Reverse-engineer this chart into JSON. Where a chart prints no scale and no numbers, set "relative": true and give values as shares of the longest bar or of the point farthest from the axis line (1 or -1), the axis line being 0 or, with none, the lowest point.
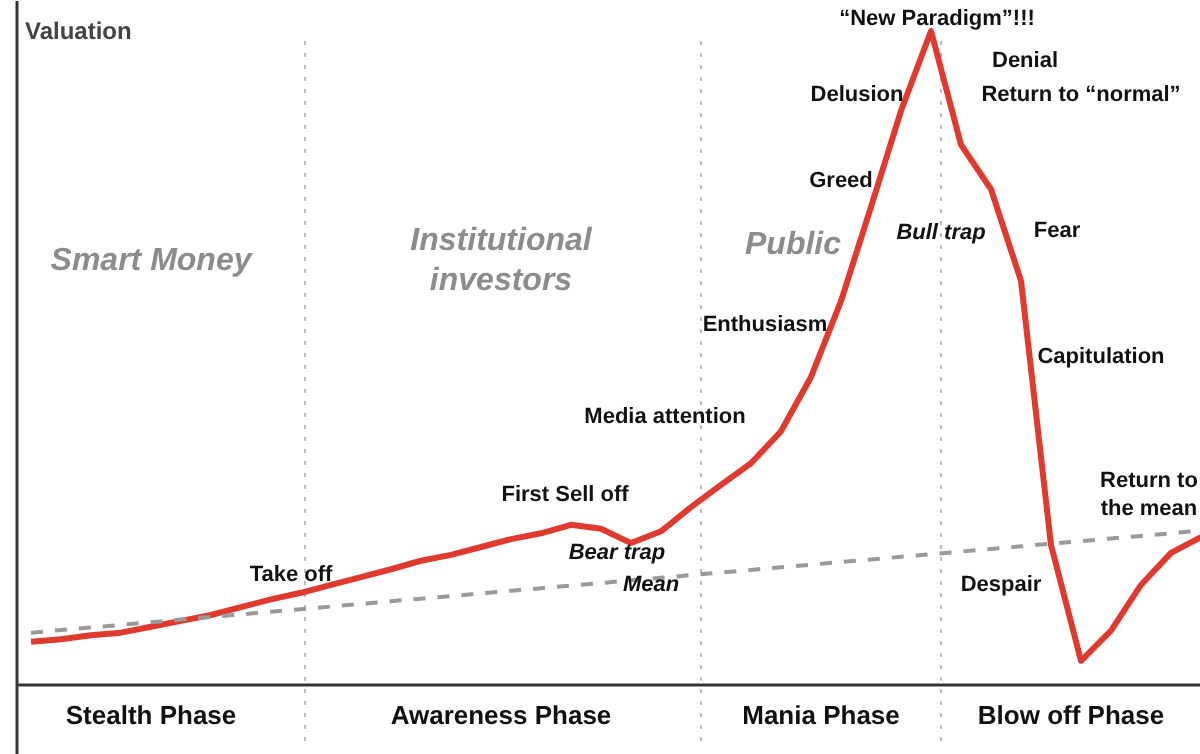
{
  "chart_data": {
    "type": "line",
    "relative": true,
    "ylabel": "Valuation",
    "grid": false,
    "marker": "none",
    "categories": [
      null,
      null,
      null,
      null,
      null,
      null,
      null,
      null,
      null,
      null,
      null,
      null,
      null,
      null,
      null,
      null,
      null,
      null,
      null,
      null,
      null,
      null,
      null,
      null,
      null,
      null,
      null,
      null,
      null,
      null,
      null,
      null,
      null,
      null,
      null,
      null,
      null,
      null,
      null,
      null
    ],
    "series": [
      {
        "color": "#e03a2f",
        "line_style": "solid",
        "values": [
          0.066,
          0.07,
          0.076,
          0.08,
          0.089,
          0.098,
          0.107,
          0.119,
          0.131,
          0.141,
          0.153,
          0.165,
          0.177,
          0.19,
          0.199,
          0.211,
          0.223,
          0.232,
          0.245,
          0.239,
          0.217,
          0.235,
          0.272,
          0.306,
          0.339,
          0.388,
          0.471,
          0.587,
          0.731,
          0.878,
          1.0,
          0.826,
          0.758,
          0.618,
          0.214,
          0.037,
          0.083,
          0.153,
          0.202,
          0.226
        ]
      },
      {
        "type": "line",
        "color": "#9a9a9a",
        "line_style": "dashed",
        "values": [
          0.08,
          0.084,
          0.088,
          0.092,
          0.096,
          0.1,
          0.104,
          0.108,
          0.112,
          0.116,
          0.12,
          0.124,
          0.128,
          0.132,
          0.136,
          0.14,
          0.144,
          0.148,
          0.152,
          0.156,
          0.16,
          0.164,
          0.168,
          0.172,
          0.176,
          0.18,
          0.184,
          0.188,
          0.192,
          0.196,
          0.2,
          0.204,
          0.208,
          0.212,
          0.216,
          0.22,
          0.224,
          0.228,
          0.232,
          0.236
        ]
      }
    ],
    "annotations": [
      "Smart Money",
      "Institutional\ninvestors",
      "Public",
      "Take off",
      "First Sell off",
      "Bear trap",
      "Mean",
      "Media attention",
      "Enthusiasm",
      "Greed",
      "Delusion",
      "“New Paradigm”!!!",
      "Denial",
      "Return to “normal”",
      "Bull trap",
      "Fear",
      "Capitulation",
      "Despair",
      "Return to\nthe mean",
      "Stealth Phase",
      "Awareness Phase",
      "Mania Phase",
      "Blow off Phase"
    ]
  }
}
